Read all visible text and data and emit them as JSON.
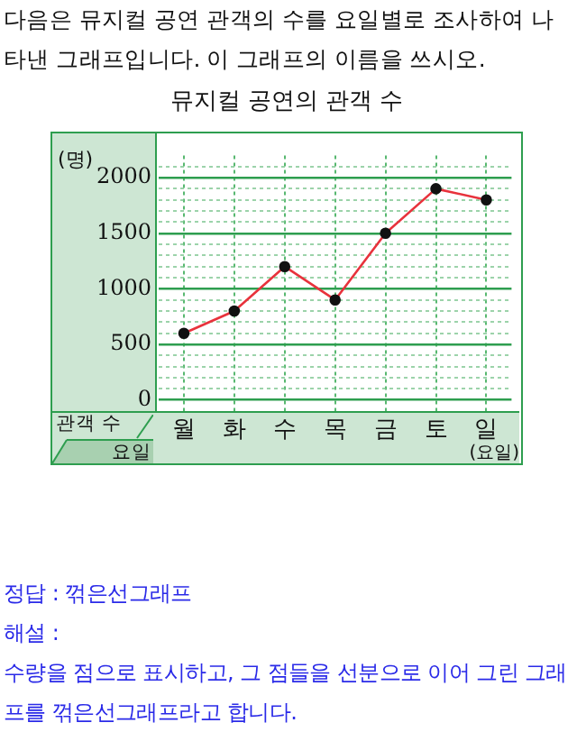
{
  "chart_data": {
    "type": "line",
    "title": "뮤지컬 공연의 관객 수",
    "annotations": [
      "다음은 뮤지컬 공연 관객의 수를 요일별로 조사하여 나타낸 그래프입니다. 이 그래프의 이름을 쓰시오.",
      "관객 수",
      "요일",
      "정답 : 꺾은선그래프",
      "해설 :",
      "수량을 점으로 표시하고, 그 점들을 선분으로 이어 그린 그래프를 꺾은선그래프라고 합니다."
    ],
    "xlabel": "(요일)",
    "ylabel": "(명)",
    "categories": [
      "월",
      "화",
      "수",
      "목",
      "금",
      "토",
      "일"
    ],
    "series": [
      {
        "color": "#e8323c",
        "values": [
          600,
          800,
          1200,
          900,
          1500,
          1900,
          1800
        ]
      }
    ],
    "ylim": [
      -100,
      2200
    ],
    "yticks": [
      0,
      {
        "value": 100,
        "label": null
      },
      {
        "value": 200,
        "label": null
      },
      {
        "value": 300,
        "label": null
      },
      {
        "value": 400,
        "label": null
      },
      500,
      {
        "value": 600,
        "label": null
      },
      {
        "value": 700,
        "label": null
      },
      {
        "value": 800,
        "label": null
      },
      {
        "value": 900,
        "label": null
      },
      1000,
      {
        "value": 1100,
        "label": null
      },
      {
        "value": 1200,
        "label": null
      },
      {
        "value": 1300,
        "label": null
      },
      {
        "value": 1400,
        "label": null
      },
      1500,
      {
        "value": 1600,
        "label": null
      },
      {
        "value": 1700,
        "label": null
      },
      {
        "value": 1800,
        "label": null
      },
      {
        "value": 1900,
        "label": null
      },
      2000,
      {
        "value": 2100,
        "label": null
      }
    ],
    "grid": true,
    "marker": "circle"
  }
}
